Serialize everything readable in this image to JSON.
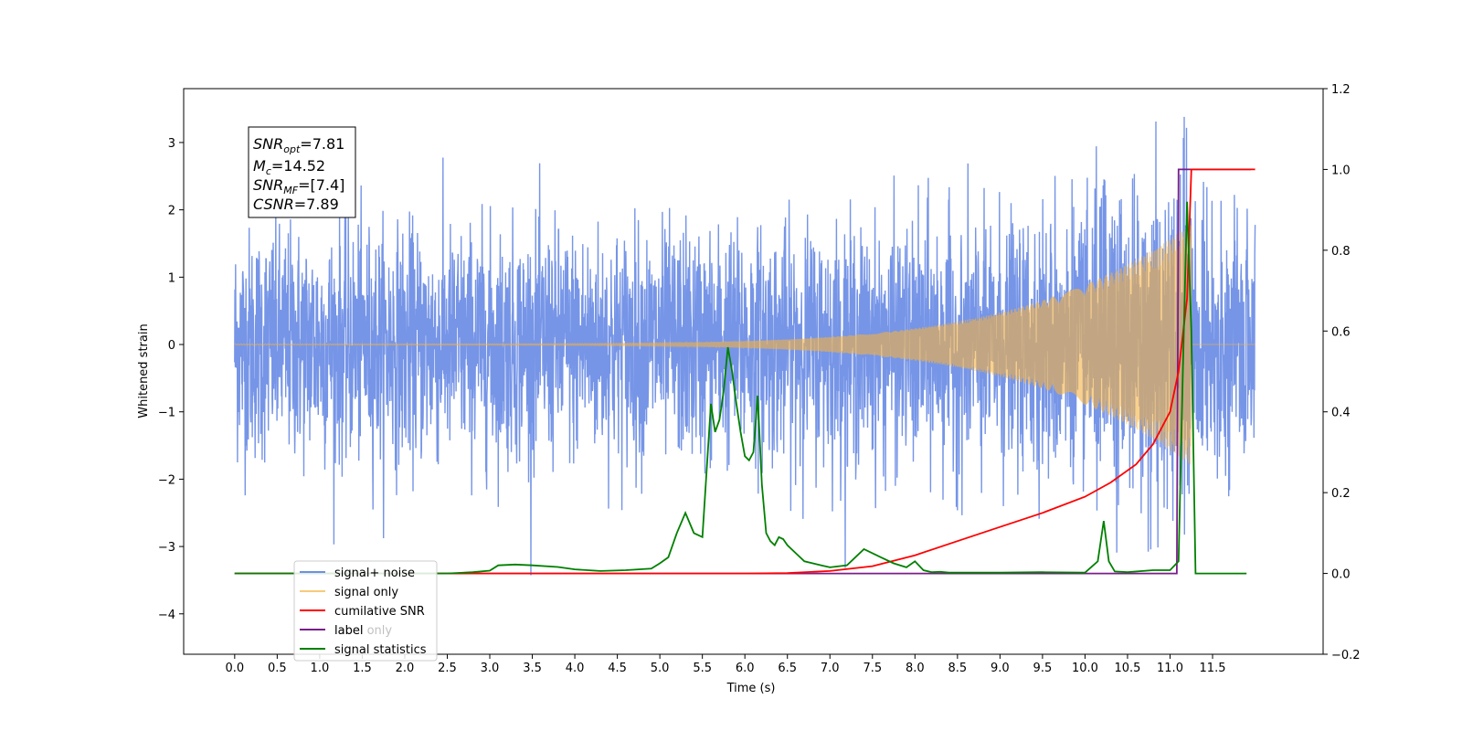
{
  "chart_data": {
    "type": "line",
    "title": "",
    "xlabel": "Time (s)",
    "ylabel": "Whitened strain",
    "y2label": "",
    "xlim": [
      -0.6,
      12.8
    ],
    "ylim": [
      -4.6,
      3.8
    ],
    "y2lim": [
      -0.2,
      1.2
    ],
    "x_ticks": [
      "0.0",
      "0.5",
      "1.0",
      "1.5",
      "2.0",
      "2.5",
      "3.0",
      "3.5",
      "4.0",
      "4.5",
      "5.0",
      "5.5",
      "6.0",
      "6.5",
      "7.0",
      "7.5",
      "8.0",
      "8.5",
      "9.0",
      "9.5",
      "10.0",
      "10.5",
      "11.0",
      "11.5"
    ],
    "y_ticks": [
      "3",
      "2",
      "1",
      "0",
      "−1",
      "−2",
      "−3",
      "−4"
    ],
    "y2_ticks": [
      "1.2",
      "1.0",
      "0.8",
      "0.6",
      "0.4",
      "0.2",
      "0.0",
      "−0.2"
    ],
    "grid": false,
    "legend_position": "lower-left",
    "annotation": {
      "snr_opt": {
        "base": "SNR",
        "sub": "opt",
        "value": "=7.81"
      },
      "mc": {
        "base": "M",
        "sub": "c",
        "value": "=14.52"
      },
      "snr_mf": {
        "base": "SNR",
        "sub": "MF",
        "value": "=[7.4]"
      },
      "csnr": {
        "base": "CSNR",
        "sub": "",
        "value": "=7.89"
      }
    },
    "series": [
      {
        "name": "signal+ noise",
        "color": "#6f8fe6",
        "axis": "left",
        "description_values": {
          "x_start": 0.0,
          "x_end": 12.0,
          "std": 0.85,
          "min": -4.1,
          "max": 3.45
        }
      },
      {
        "name": "signal only",
        "color": "#f5b342",
        "axis": "left",
        "description_values": {
          "x_start": 0.0,
          "x_end": 11.25,
          "amplitude_start": 0.01,
          "amplitude_end": 1.8,
          "chirp_start_freq": 30,
          "chirp_end_freq": 70
        }
      },
      {
        "name": "cumilative SNR",
        "color": "#ff0000",
        "axis": "right",
        "x": [
          0.0,
          6.0,
          6.5,
          7.0,
          7.5,
          8.0,
          8.5,
          9.0,
          9.5,
          10.0,
          10.3,
          10.6,
          10.8,
          11.0,
          11.1,
          11.2,
          11.25,
          11.3,
          12.0
        ],
        "values": [
          0.0,
          0.0,
          0.001,
          0.006,
          0.018,
          0.045,
          0.08,
          0.115,
          0.15,
          0.19,
          0.225,
          0.27,
          0.32,
          0.4,
          0.5,
          0.68,
          1.0,
          1.0,
          1.0
        ]
      },
      {
        "name": "label",
        "color": "#7a1d8a",
        "axis": "right",
        "x": [
          0.0,
          11.08,
          11.1,
          11.26,
          11.28,
          11.95
        ],
        "values": [
          0.0,
          0.0,
          1.0,
          1.0,
          1.0,
          1.0
        ]
      },
      {
        "name": "label only",
        "color": "#7a1d8a",
        "axis": "right",
        "x": [],
        "values": []
      },
      {
        "name": "signal statistics",
        "color": "#008000",
        "axis": "right",
        "x": [
          0.0,
          2.5,
          2.8,
          3.0,
          3.1,
          3.3,
          3.5,
          3.8,
          4.0,
          4.3,
          4.6,
          4.9,
          5.0,
          5.1,
          5.2,
          5.3,
          5.4,
          5.5,
          5.6,
          5.65,
          5.7,
          5.75,
          5.8,
          5.85,
          5.9,
          5.95,
          6.0,
          6.05,
          6.1,
          6.15,
          6.2,
          6.25,
          6.3,
          6.35,
          6.4,
          6.45,
          6.5,
          6.6,
          6.7,
          6.8,
          6.9,
          7.0,
          7.2,
          7.4,
          7.6,
          7.75,
          7.9,
          8.0,
          8.1,
          8.2,
          8.3,
          8.4,
          8.5,
          8.7,
          9.0,
          9.5,
          10.0,
          10.15,
          10.22,
          10.28,
          10.35,
          10.5,
          10.8,
          11.0,
          11.1,
          11.15,
          11.2,
          11.25,
          11.3,
          11.35,
          11.9
        ],
        "values": [
          0.0,
          0.0,
          0.003,
          0.007,
          0.02,
          0.022,
          0.02,
          0.016,
          0.01,
          0.006,
          0.008,
          0.012,
          0.025,
          0.04,
          0.1,
          0.15,
          0.1,
          0.09,
          0.42,
          0.35,
          0.38,
          0.45,
          0.56,
          0.5,
          0.42,
          0.35,
          0.29,
          0.28,
          0.3,
          0.44,
          0.22,
          0.1,
          0.08,
          0.07,
          0.09,
          0.085,
          0.07,
          0.05,
          0.03,
          0.025,
          0.02,
          0.015,
          0.02,
          0.06,
          0.04,
          0.025,
          0.015,
          0.03,
          0.008,
          0.003,
          0.004,
          0.002,
          0.002,
          0.002,
          0.002,
          0.003,
          0.002,
          0.03,
          0.13,
          0.03,
          0.005,
          0.003,
          0.008,
          0.008,
          0.03,
          0.5,
          0.92,
          0.6,
          0.0,
          0.0,
          0.0
        ]
      }
    ]
  }
}
